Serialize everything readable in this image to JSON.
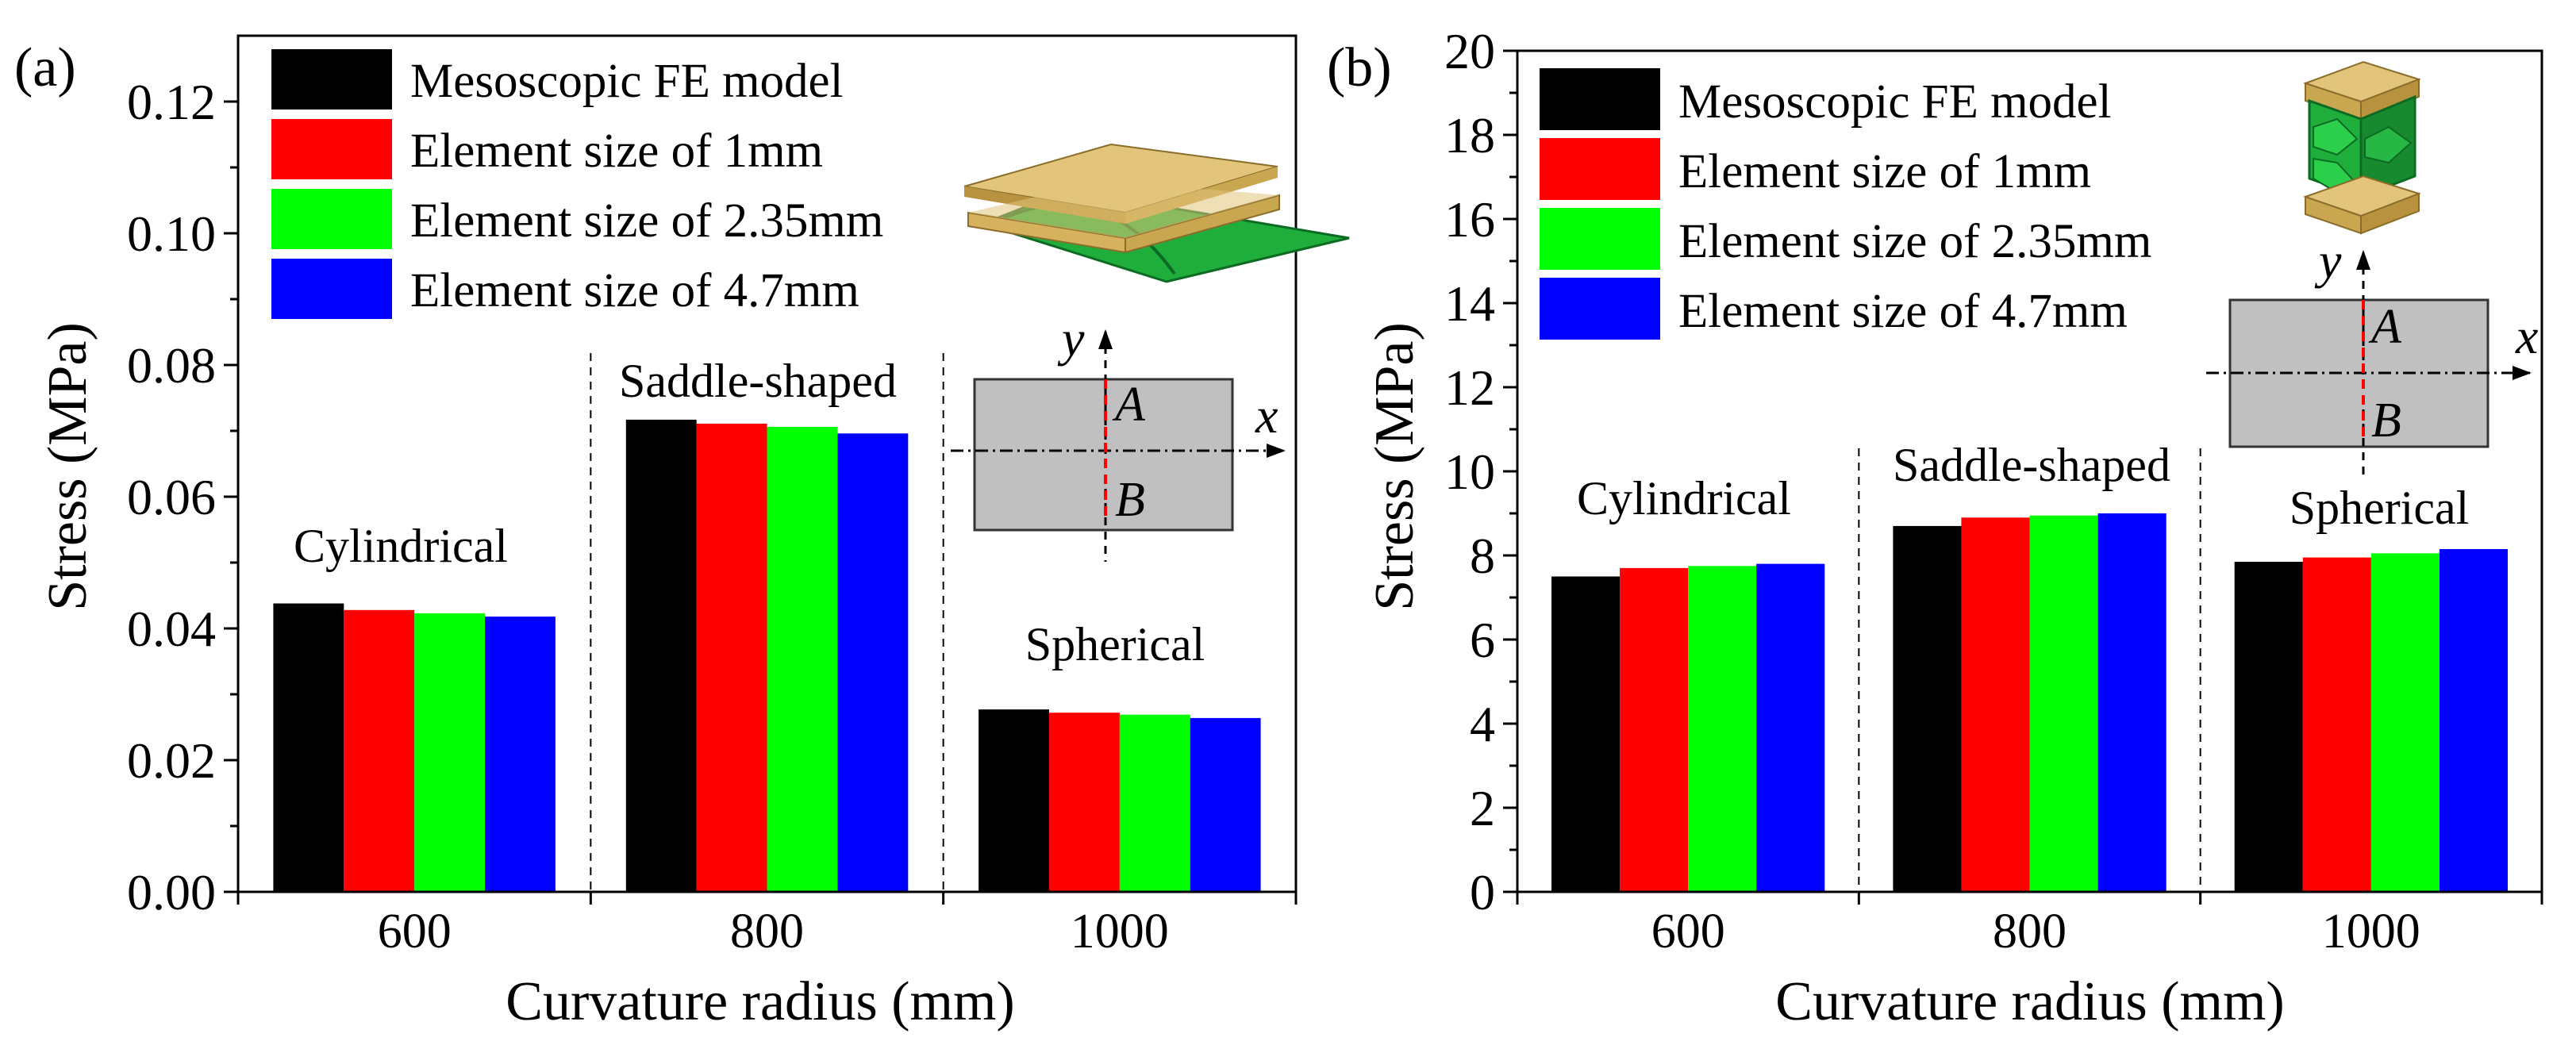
{
  "chart_data": [
    {
      "panel_label": "(a)",
      "type": "bar",
      "title": "",
      "xlabel": "Curvature radius (mm)",
      "ylabel": "Stress (MPa)",
      "categories": [
        "600",
        "800",
        "1000"
      ],
      "ylim": [
        0,
        0.13
      ],
      "yticks": [
        "0.00",
        "0.02",
        "0.04",
        "0.06",
        "0.08",
        "0.10",
        "0.12"
      ],
      "group_labels": [
        "Cylindrical",
        "Saddle-shaped",
        "Spherical"
      ],
      "series": [
        {
          "name": "Mesoscopic FE model",
          "values": [
            0.0438,
            0.0717,
            0.0277
          ]
        },
        {
          "name": "Element size of 1mm",
          "values": [
            0.0428,
            0.0711,
            0.0272
          ]
        },
        {
          "name": "Element size of 2.35mm",
          "values": [
            0.0423,
            0.0706,
            0.0269
          ]
        },
        {
          "name": "Element size of 4.7mm",
          "values": [
            0.0418,
            0.0696,
            0.0264
          ]
        }
      ],
      "legend_position": "top-left",
      "inset": {
        "x_axis": "x",
        "y_axis": "y",
        "point_a": "A",
        "point_b": "B"
      }
    },
    {
      "panel_label": "(b)",
      "type": "bar",
      "title": "",
      "xlabel": "Curvature radius (mm)",
      "ylabel": "Stress (MPa)",
      "categories": [
        "600",
        "800",
        "1000"
      ],
      "ylim": [
        0,
        20
      ],
      "yticks": [
        "0",
        "2",
        "4",
        "6",
        "8",
        "10",
        "12",
        "14",
        "16",
        "18",
        "20"
      ],
      "group_labels": [
        "Cylindrical",
        "Saddle-shaped",
        "Spherical"
      ],
      "series": [
        {
          "name": "Mesoscopic FE model",
          "values": [
            7.5,
            8.7,
            7.85
          ]
        },
        {
          "name": "Element size of 1mm",
          "values": [
            7.7,
            8.9,
            7.95
          ]
        },
        {
          "name": "Element size of 2.35mm",
          "values": [
            7.75,
            8.95,
            8.05
          ]
        },
        {
          "name": "Element size of 4.7mm",
          "values": [
            7.8,
            9.0,
            8.15
          ]
        }
      ],
      "legend_position": "top-left",
      "inset": {
        "x_axis": "x",
        "y_axis": "y",
        "point_a": "A",
        "point_b": "B"
      }
    }
  ],
  "colors": {
    "series": [
      "#000000",
      "#ff0000",
      "#00ff00",
      "#0000ff"
    ],
    "inset_fill": "#c0c0c0",
    "dashed_line": "#ff0000",
    "wood": "#d6b25e",
    "core": "#1fae3c"
  }
}
